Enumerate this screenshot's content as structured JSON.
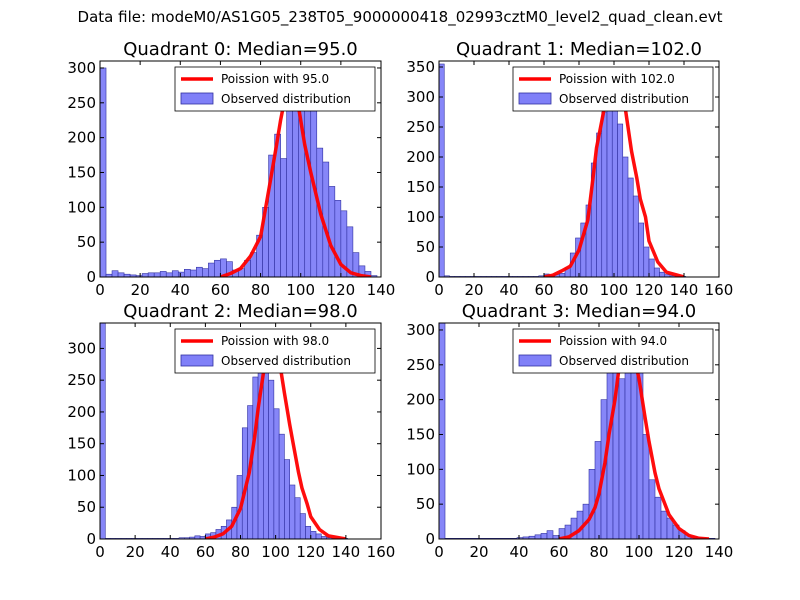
{
  "suptitle": "Data file: modeM0/AS1G05_238T05_9000000418_02993cztM0_level2_quad_clean.evt",
  "colors": {
    "bar_fill": "#8080f8",
    "bar_edge": "#3030a0",
    "fit_line": "#ff0000",
    "axis": "#000000"
  },
  "chart_data": [
    {
      "type": "bar",
      "title": "Quadrant 0: Median=95.0",
      "legend": {
        "placement": "top-right",
        "line_label": "Poission with 95.0",
        "bar_label": "Observed distribution"
      },
      "xlim": [
        0,
        140
      ],
      "ylim": [
        0,
        310
      ],
      "xticks": [
        0,
        20,
        40,
        60,
        80,
        100,
        120,
        140
      ],
      "yticks": [
        0,
        50,
        100,
        150,
        200,
        250,
        300
      ],
      "bin_width": 3,
      "bin_starts": [
        0,
        3,
        6,
        9,
        12,
        15,
        18,
        21,
        24,
        27,
        30,
        33,
        36,
        39,
        42,
        45,
        48,
        51,
        54,
        57,
        60,
        63,
        66,
        69,
        72,
        75,
        78,
        81,
        84,
        87,
        90,
        93,
        96,
        99,
        102,
        105,
        108,
        111,
        114,
        117,
        120,
        123,
        126,
        129,
        132,
        135
      ],
      "counts": [
        300,
        4,
        9,
        6,
        4,
        3,
        2,
        5,
        6,
        6,
        8,
        6,
        9,
        7,
        11,
        10,
        14,
        12,
        20,
        24,
        26,
        22,
        10,
        12,
        24,
        35,
        60,
        100,
        175,
        205,
        170,
        260,
        290,
        250,
        300,
        250,
        185,
        165,
        130,
        110,
        95,
        72,
        35,
        16,
        8,
        2
      ],
      "poisson_mean": 95.0,
      "poisson_x": [
        60,
        65,
        70,
        75,
        80,
        85,
        88,
        90,
        92,
        94,
        95,
        96,
        98,
        100,
        102,
        105,
        110,
        115,
        120,
        125,
        130,
        135
      ],
      "poisson_y": [
        0,
        5,
        12,
        30,
        58,
        140,
        190,
        225,
        255,
        285,
        291,
        285,
        260,
        225,
        190,
        150,
        90,
        45,
        18,
        6,
        2,
        0
      ]
    },
    {
      "type": "bar",
      "title": "Quadrant 1: Median=102.0",
      "legend": {
        "placement": "top-right",
        "line_label": "Poission with 102.0",
        "bar_label": "Observed distribution"
      },
      "xlim": [
        0,
        160
      ],
      "ylim": [
        0,
        360
      ],
      "xticks": [
        0,
        20,
        40,
        60,
        80,
        100,
        120,
        140,
        160
      ],
      "yticks": [
        0,
        50,
        100,
        150,
        200,
        250,
        300,
        350
      ],
      "bin_width": 3,
      "bin_starts": [
        0,
        3,
        6,
        9,
        12,
        15,
        18,
        21,
        24,
        27,
        30,
        33,
        36,
        39,
        42,
        45,
        48,
        51,
        54,
        57,
        60,
        63,
        66,
        69,
        72,
        75,
        78,
        81,
        84,
        87,
        90,
        93,
        96,
        99,
        102,
        105,
        108,
        111,
        114,
        117,
        120,
        123,
        126,
        129,
        132,
        135,
        138
      ],
      "counts": [
        355,
        2,
        1,
        1,
        1,
        1,
        1,
        1,
        1,
        1,
        1,
        1,
        1,
        1,
        1,
        1,
        1,
        1,
        1,
        2,
        5,
        3,
        4,
        6,
        15,
        40,
        65,
        90,
        120,
        190,
        240,
        275,
        300,
        340,
        255,
        200,
        165,
        135,
        90,
        50,
        30,
        15,
        8,
        4,
        2,
        1,
        1
      ],
      "poisson_mean": 102.0,
      "poisson_x": [
        60,
        65,
        70,
        75,
        80,
        85,
        88,
        90,
        93,
        95,
        98,
        100,
        102,
        104,
        106,
        108,
        110,
        113,
        115,
        118,
        120,
        125,
        130,
        140
      ],
      "poisson_y": [
        0,
        3,
        10,
        18,
        45,
        95,
        165,
        215,
        260,
        290,
        325,
        335,
        340,
        320,
        290,
        250,
        210,
        165,
        130,
        100,
        60,
        25,
        8,
        0
      ]
    },
    {
      "type": "bar",
      "title": "Quadrant 2: Median=98.0",
      "legend": {
        "placement": "top-right",
        "line_label": "Poission with 98.0",
        "bar_label": "Observed distribution"
      },
      "xlim": [
        0,
        160
      ],
      "ylim": [
        0,
        340
      ],
      "xticks": [
        0,
        20,
        40,
        60,
        80,
        100,
        120,
        140,
        160
      ],
      "yticks": [
        0,
        50,
        100,
        150,
        200,
        250,
        300
      ],
      "bin_width": 3,
      "bin_starts": [
        0,
        3,
        6,
        9,
        12,
        15,
        18,
        21,
        24,
        27,
        30,
        33,
        36,
        39,
        42,
        45,
        48,
        51,
        54,
        57,
        60,
        63,
        66,
        69,
        72,
        75,
        78,
        81,
        84,
        87,
        90,
        93,
        96,
        99,
        102,
        105,
        108,
        111,
        114,
        117,
        120,
        123,
        126,
        129,
        132,
        135,
        138
      ],
      "counts": [
        340,
        1,
        1,
        1,
        1,
        1,
        1,
        1,
        1,
        1,
        1,
        1,
        1,
        1,
        1,
        2,
        2,
        3,
        5,
        4,
        8,
        10,
        15,
        20,
        30,
        50,
        100,
        175,
        210,
        255,
        300,
        275,
        250,
        205,
        165,
        125,
        85,
        65,
        40,
        20,
        12,
        8,
        4,
        2,
        1,
        1,
        1
      ],
      "poisson_mean": 98.0,
      "poisson_x": [
        60,
        65,
        70,
        75,
        80,
        85,
        88,
        90,
        93,
        95,
        97,
        98,
        99,
        101,
        103,
        105,
        108,
        110,
        113,
        115,
        118,
        120,
        125,
        130,
        140
      ],
      "poisson_y": [
        0,
        3,
        8,
        20,
        48,
        105,
        160,
        205,
        260,
        295,
        320,
        325,
        320,
        295,
        265,
        230,
        180,
        150,
        105,
        80,
        55,
        35,
        15,
        5,
        0
      ]
    },
    {
      "type": "bar",
      "title": "Quadrant 3: Median=94.0",
      "legend": {
        "placement": "top-right",
        "line_label": "Poission with 94.0",
        "bar_label": "Observed distribution"
      },
      "xlim": [
        0,
        140
      ],
      "ylim": [
        0,
        310
      ],
      "xticks": [
        0,
        20,
        40,
        60,
        80,
        100,
        120,
        140
      ],
      "yticks": [
        0,
        50,
        100,
        150,
        200,
        250,
        300
      ],
      "bin_width": 3,
      "bin_starts": [
        0,
        3,
        6,
        9,
        12,
        15,
        18,
        21,
        24,
        27,
        30,
        33,
        36,
        39,
        42,
        45,
        48,
        51,
        54,
        57,
        60,
        63,
        66,
        69,
        72,
        75,
        78,
        81,
        84,
        87,
        90,
        93,
        96,
        99,
        102,
        105,
        108,
        111,
        114,
        117,
        120,
        123,
        126,
        129,
        132,
        135
      ],
      "counts": [
        310,
        1,
        1,
        1,
        1,
        1,
        1,
        1,
        1,
        1,
        1,
        1,
        1,
        2,
        3,
        4,
        6,
        8,
        12,
        5,
        15,
        20,
        30,
        40,
        50,
        100,
        140,
        200,
        260,
        300,
        230,
        260,
        240,
        250,
        150,
        85,
        60,
        40,
        30,
        20,
        12,
        6,
        3,
        2,
        1,
        1
      ],
      "poisson_mean": 94.0,
      "poisson_x": [
        60,
        65,
        70,
        75,
        78,
        80,
        83,
        85,
        88,
        90,
        92,
        93,
        94,
        95,
        97,
        100,
        103,
        105,
        108,
        110,
        115,
        120,
        125,
        130,
        135
      ],
      "poisson_y": [
        0,
        3,
        12,
        28,
        45,
        65,
        110,
        150,
        200,
        245,
        280,
        290,
        292,
        290,
        270,
        230,
        175,
        140,
        95,
        72,
        35,
        15,
        5,
        1,
        0
      ]
    }
  ]
}
